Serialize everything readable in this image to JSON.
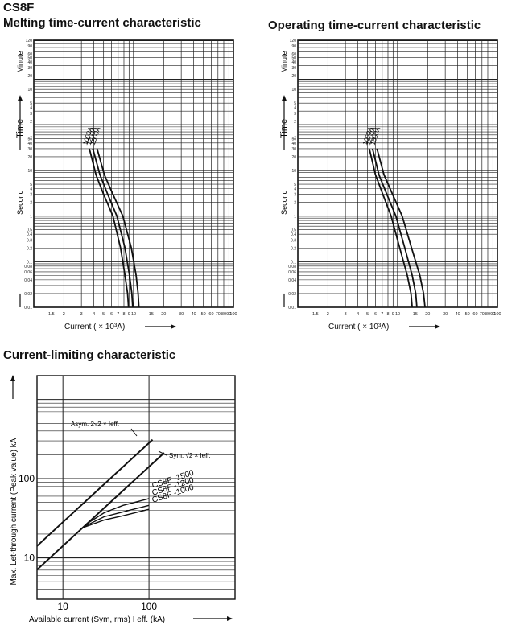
{
  "header": {
    "model": "CS8F",
    "melting_title": "Melting time-current characteristic",
    "operating_title": "Operating time-current characteristic",
    "limiting_title": "Current-limiting characteristic"
  },
  "chart_data": [
    {
      "type": "line",
      "title": "Melting time-current characteristic",
      "xlabel": "Current ( × 10³A)",
      "ylabel": "Time",
      "ylabel_upper": "Minute",
      "ylabel_lower": "Second",
      "xscale": "log",
      "yscale": "log",
      "xlim": [
        1,
        100
      ],
      "ylim": [
        0.01,
        7200
      ],
      "x_ticks": [
        "1.5",
        "2",
        "3",
        "4",
        "5",
        "6",
        "7",
        "8",
        "9",
        "10",
        "15",
        "20",
        "30",
        "40",
        "50",
        "60",
        "70",
        "80",
        "90",
        "100"
      ],
      "y_ticks_minute": [
        "120",
        "90",
        "60",
        "50",
        "40",
        "30",
        "20",
        "10",
        "5",
        "4",
        "3",
        "2",
        "1"
      ],
      "y_ticks_second": [
        "50",
        "40",
        "30",
        "20",
        "10",
        "5",
        "4",
        "3",
        "2",
        "1",
        "0.5",
        "0.4",
        "0.3",
        "0.2",
        "0.1",
        "0.08",
        "0.06",
        "0.04",
        "0.02",
        "0.01"
      ],
      "grid": true,
      "series": [
        {
          "name": "1000A",
          "x": [
            3.6,
            4.2,
            5.0,
            6.2,
            7.4,
            8.2,
            8.7,
            8.9
          ],
          "y": [
            30,
            8,
            3,
            1,
            0.2,
            0.05,
            0.02,
            0.01
          ]
        },
        {
          "name": "1200A",
          "x": [
            3.9,
            4.6,
            5.5,
            6.8,
            8.2,
            9.1,
            9.6,
            9.8
          ],
          "y": [
            30,
            8,
            3,
            1,
            0.2,
            0.05,
            0.02,
            0.01
          ]
        },
        {
          "name": "1500A",
          "x": [
            4.3,
            5.1,
            6.2,
            7.8,
            9.5,
            10.6,
            11.1,
            11.3
          ],
          "y": [
            30,
            8,
            3,
            1,
            0.2,
            0.05,
            0.02,
            0.01
          ]
        }
      ]
    },
    {
      "type": "line",
      "title": "Operating time-current characteristic",
      "xlabel": "Current ( × 10³A)",
      "ylabel": "Time",
      "ylabel_upper": "Minute",
      "ylabel_lower": "Second",
      "xscale": "log",
      "yscale": "log",
      "xlim": [
        1,
        100
      ],
      "ylim": [
        0.01,
        7200
      ],
      "x_ticks": [
        "1.5",
        "2",
        "3",
        "4",
        "5",
        "6",
        "7",
        "8",
        "9",
        "10",
        "15",
        "20",
        "30",
        "40",
        "50",
        "60",
        "70",
        "80",
        "90",
        "100"
      ],
      "y_ticks_minute": [
        "120",
        "90",
        "60",
        "50",
        "40",
        "30",
        "20",
        "10",
        "5",
        "4",
        "3",
        "2",
        "1"
      ],
      "y_ticks_second": [
        "50",
        "40",
        "30",
        "20",
        "10",
        "5",
        "4",
        "3",
        "2",
        "1",
        "0.5",
        "0.4",
        "0.3",
        "0.2",
        "0.1",
        "0.08",
        "0.06",
        "0.04",
        "0.02",
        "0.01"
      ],
      "grid": true,
      "series": [
        {
          "name": "1000A",
          "x": [
            5.2,
            6.0,
            7.1,
            8.6,
            10.5,
            12.5,
            13.6,
            14.0
          ],
          "y": [
            30,
            8,
            3,
            1,
            0.2,
            0.05,
            0.02,
            0.01
          ]
        },
        {
          "name": "1200A",
          "x": [
            5.6,
            6.5,
            7.8,
            9.6,
            11.8,
            14.0,
            15.2,
            15.6
          ],
          "y": [
            30,
            8,
            3,
            1,
            0.2,
            0.05,
            0.02,
            0.01
          ]
        },
        {
          "name": "1500A",
          "x": [
            6.2,
            7.3,
            8.9,
            11.1,
            13.8,
            16.7,
            18.2,
            18.8
          ],
          "y": [
            30,
            8,
            3,
            1,
            0.2,
            0.05,
            0.02,
            0.01
          ]
        }
      ]
    },
    {
      "type": "line",
      "title": "Current-limiting characteristic",
      "xlabel": "Available current (Sym, rms) I eff. (kA)",
      "ylabel": "Max. Let-through current (Peak value) kA",
      "xscale": "log",
      "yscale": "log",
      "xlim": [
        5,
        1000
      ],
      "ylim": [
        3,
        2000
      ],
      "x_ticks": [
        "10",
        "100"
      ],
      "y_ticks": [
        "10",
        "100"
      ],
      "grid": true,
      "annotations": [
        {
          "text": "Asym. 2√2 × Ieff.",
          "series": "asym"
        },
        {
          "text": "Sym. √2 × Ieff.",
          "series": "sym"
        }
      ],
      "series": [
        {
          "name": "Asym. 2√2 × Ieff.",
          "x": [
            5,
            110
          ],
          "y": [
            14.1,
            311
          ]
        },
        {
          "name": "Sym. √2 × Ieff.",
          "x": [
            5,
            150
          ],
          "y": [
            7.07,
            212
          ]
        },
        {
          "name": "CS8F -1500",
          "x": [
            18,
            30,
            50,
            100
          ],
          "y": [
            26,
            37,
            46,
            56
          ]
        },
        {
          "name": "CS8F -1200",
          "x": [
            18,
            30,
            50,
            100
          ],
          "y": [
            25,
            33,
            38,
            46
          ]
        },
        {
          "name": "CS8F -1000",
          "x": [
            17,
            30,
            50,
            100
          ],
          "y": [
            24,
            30,
            34,
            41
          ]
        }
      ]
    }
  ]
}
